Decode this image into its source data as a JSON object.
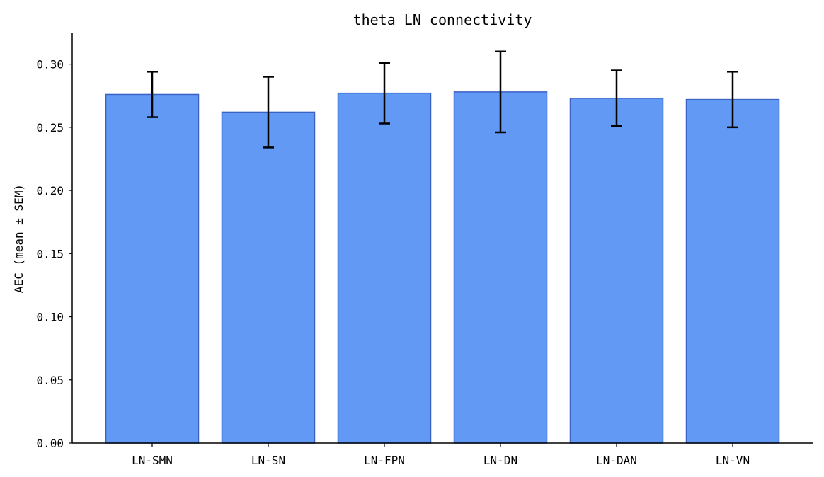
{
  "chart_data": {
    "type": "bar",
    "title": "theta_LN_connectivity",
    "xlabel": "",
    "ylabel": "AEC (mean ± SEM)",
    "categories": [
      "LN-SMN",
      "LN-SN",
      "LN-FPN",
      "LN-DN",
      "LN-DAN",
      "LN-VN"
    ],
    "series": [
      {
        "values": [
          0.276,
          0.262,
          0.277,
          0.278,
          0.273,
          0.272
        ],
        "sem": [
          0.018,
          0.028,
          0.024,
          0.032,
          0.022,
          0.022
        ]
      }
    ],
    "ylim": [
      0,
      0.325
    ],
    "yticks": [
      0.0,
      0.05,
      0.1,
      0.15,
      0.2,
      0.25,
      0.3
    ],
    "ytick_labels": [
      "0.00",
      "0.05",
      "0.10",
      "0.15",
      "0.20",
      "0.25",
      "0.30"
    ],
    "grid": false,
    "legend": "none",
    "colors": {
      "bar_fill": "#6199f5",
      "bar_edge": "#3a62c4",
      "error_bar": "#000000",
      "axis": "#000000"
    }
  }
}
